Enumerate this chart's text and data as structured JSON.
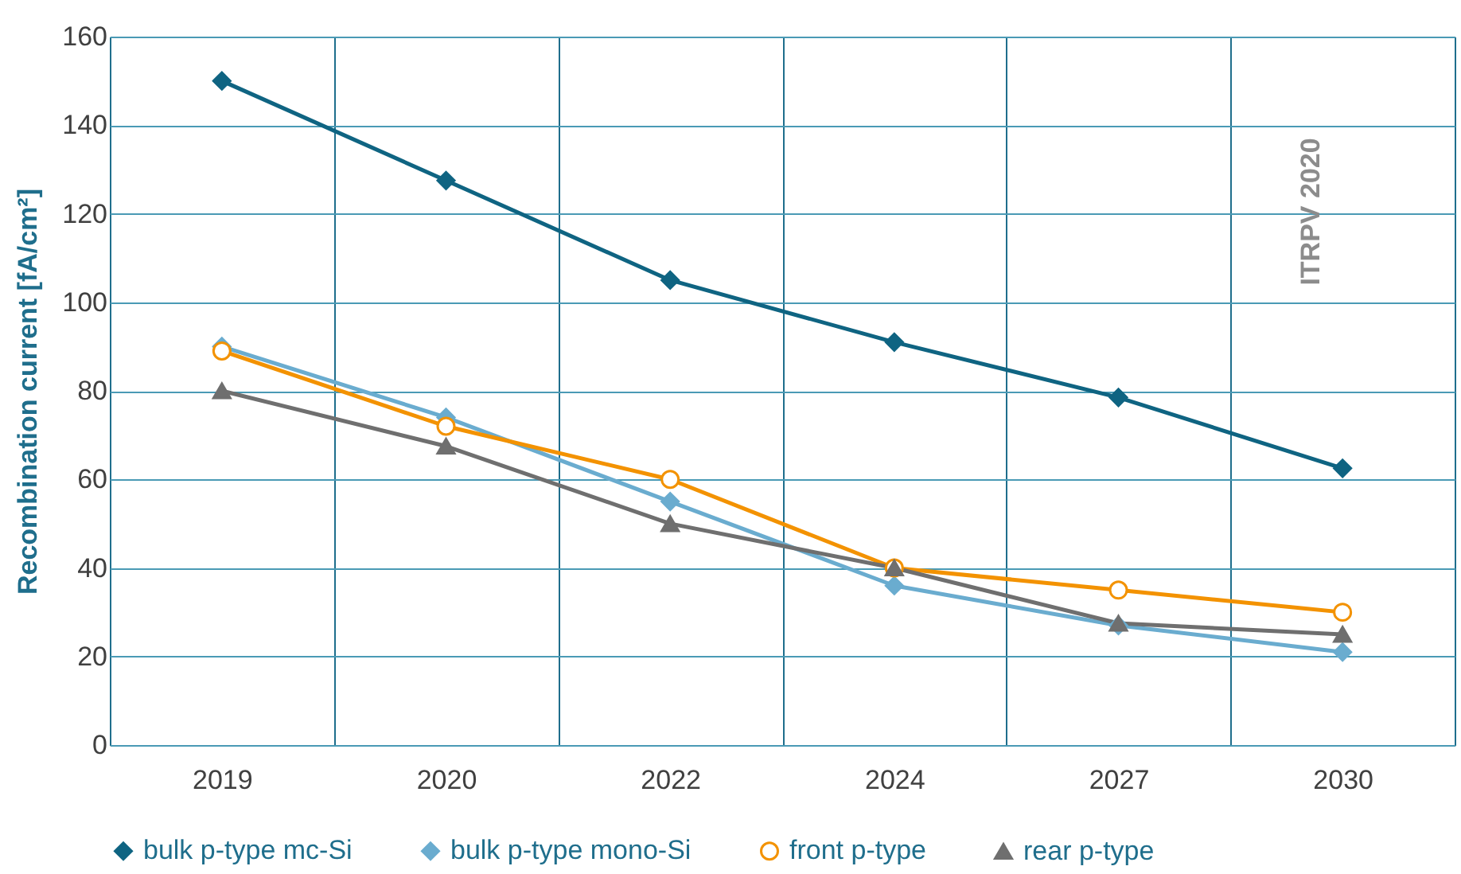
{
  "chart_data": {
    "type": "line",
    "ylabel": "Recombination current [fA/cm²]",
    "categories": [
      "2019",
      "2020",
      "2022",
      "2024",
      "2027",
      "2030"
    ],
    "series": [
      {
        "name": "bulk p-type mc-Si",
        "color": "#0f6482",
        "marker": "diamond",
        "values": [
          150,
          127.5,
          105,
          91,
          78.5,
          62.5
        ]
      },
      {
        "name": "bulk p-type mono-Si",
        "color": "#6aaccf",
        "marker": "diamond",
        "values": [
          90,
          74,
          55,
          36,
          27,
          21
        ]
      },
      {
        "name": "front p-type",
        "color": "#f39200",
        "marker": "circle",
        "values": [
          89,
          72,
          60,
          40,
          35,
          30
        ]
      },
      {
        "name": "rear p-type",
        "color": "#6f6f6f",
        "marker": "triangle",
        "values": [
          80,
          67.5,
          50,
          40,
          27.5,
          25
        ]
      }
    ],
    "ylim": [
      0,
      160
    ],
    "yticks": [
      0,
      20,
      40,
      60,
      80,
      100,
      120,
      140,
      160
    ],
    "grid": true,
    "legend": "bottom",
    "line_style": "solid",
    "annotations": [
      "ITRPV 2020"
    ]
  }
}
